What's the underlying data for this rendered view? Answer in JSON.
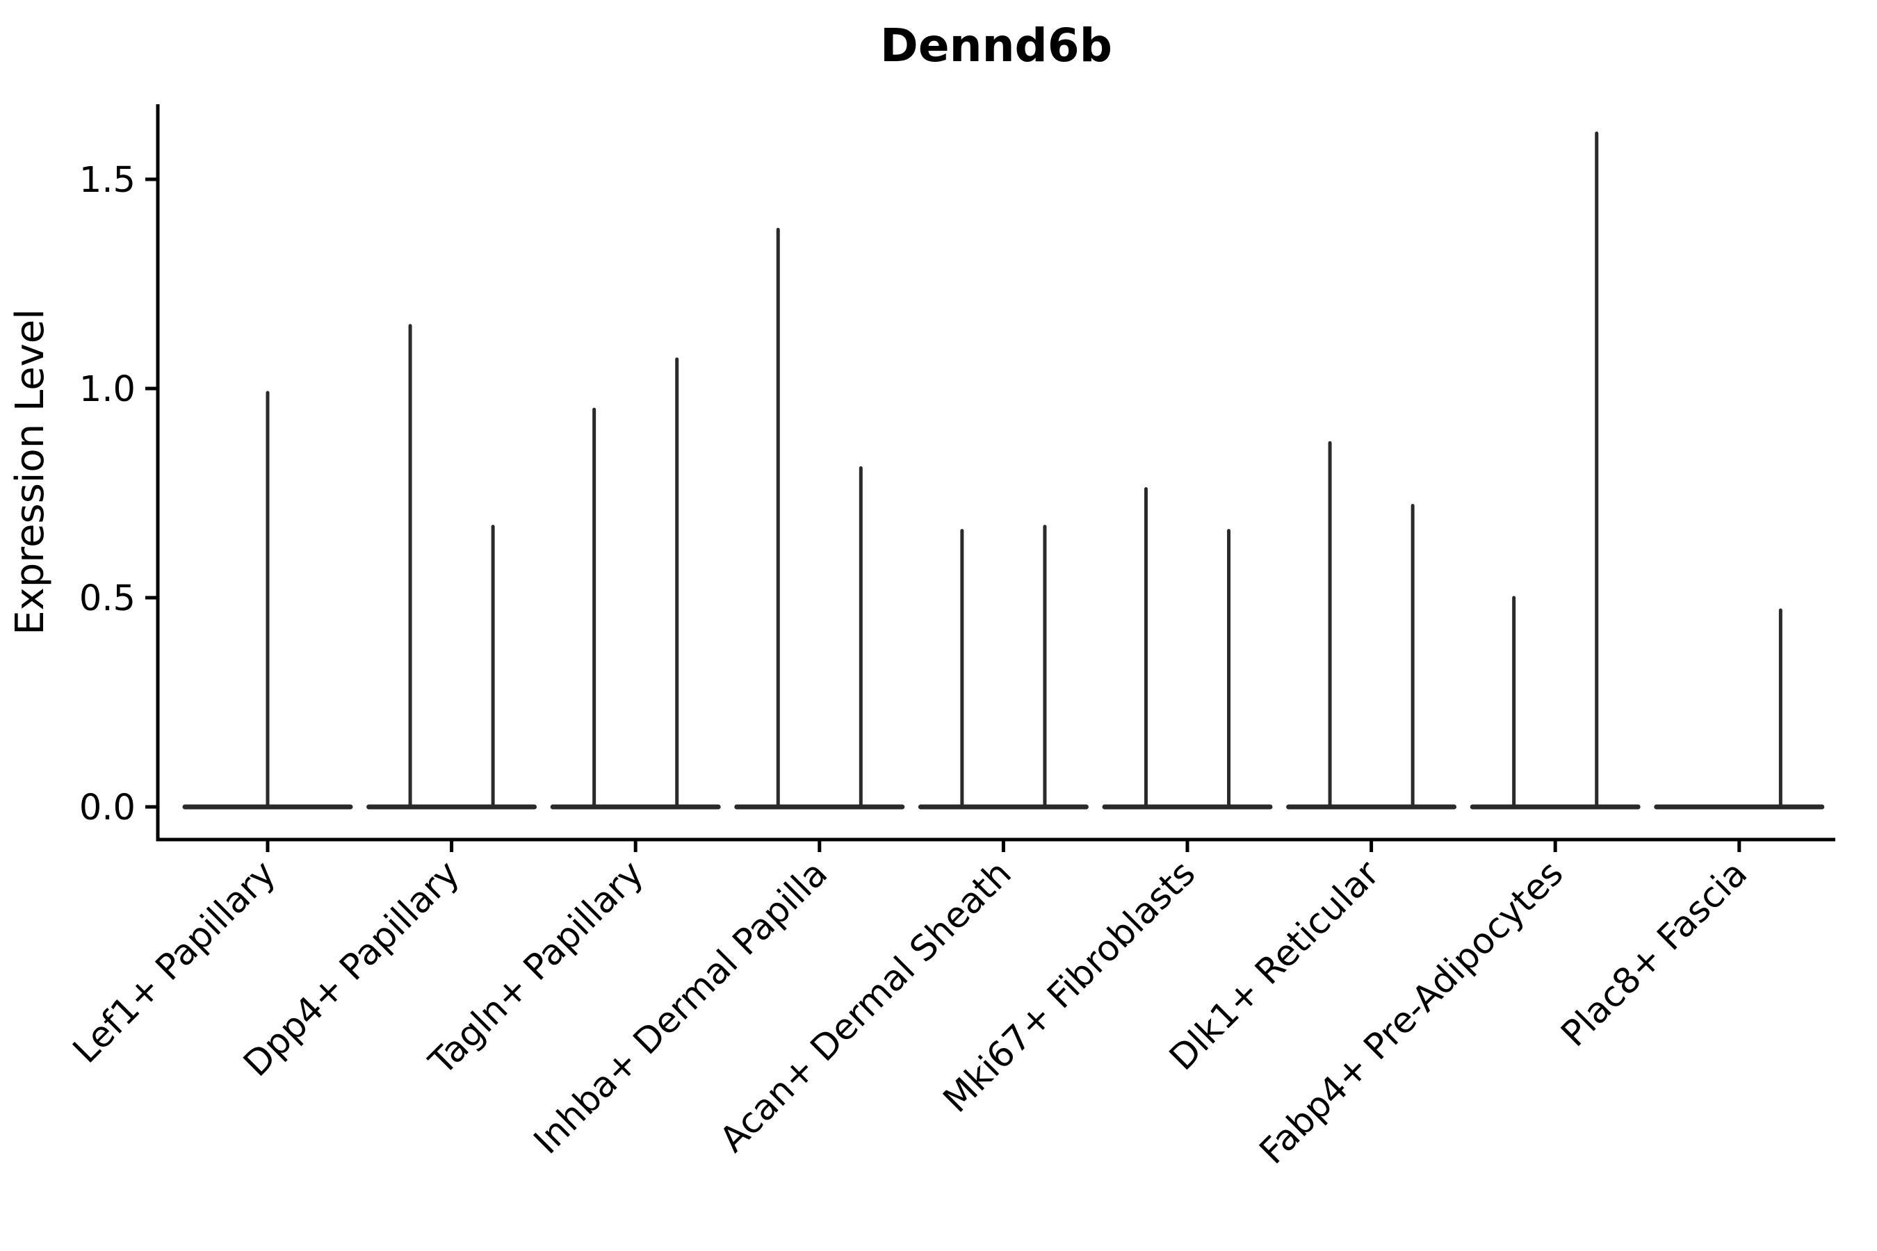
{
  "chart_data": {
    "type": "violin",
    "title": "Dennd6b",
    "ylabel": "Expression Level",
    "xlabel": "",
    "yticks": [
      0.0,
      0.5,
      1.0,
      1.5
    ],
    "ytick_labels": [
      "0.0",
      "0.5",
      "1.0",
      "1.5"
    ],
    "ylim": [
      -0.08,
      1.68
    ],
    "grid": false,
    "legend": "none",
    "ink_color": "#2a2a2a",
    "text_color": "#000000",
    "background_color": "#ffffff",
    "categories": [
      "Lef1+ Papillary",
      "Dpp4+ Papillary",
      "Tagln+ Papillary",
      "Inhba+ Dermal Papilla",
      "Acan+ Dermal Sheath",
      "Mki67+ Fibroblasts",
      "Dlk1+ Reticular",
      "Fabp4+ Pre-Adipocytes",
      "Plac8+ Fascia"
    ],
    "violins": [
      {
        "category": "Lef1+ Papillary",
        "spikes": [
          {
            "x_offset": 0.0,
            "max": 0.99
          }
        ]
      },
      {
        "category": "Dpp4+ Papillary",
        "spikes": [
          {
            "x_offset": -0.225,
            "max": 1.15
          },
          {
            "x_offset": 0.225,
            "max": 0.67
          }
        ]
      },
      {
        "category": "Tagln+ Papillary",
        "spikes": [
          {
            "x_offset": -0.225,
            "max": 0.95
          },
          {
            "x_offset": 0.225,
            "max": 1.07
          }
        ]
      },
      {
        "category": "Inhba+ Dermal Papilla",
        "spikes": [
          {
            "x_offset": -0.225,
            "max": 1.38
          },
          {
            "x_offset": 0.225,
            "max": 0.81
          }
        ]
      },
      {
        "category": "Acan+ Dermal Sheath",
        "spikes": [
          {
            "x_offset": -0.225,
            "max": 0.66
          },
          {
            "x_offset": 0.225,
            "max": 0.67
          }
        ]
      },
      {
        "category": "Mki67+ Fibroblasts",
        "spikes": [
          {
            "x_offset": -0.225,
            "max": 0.76
          },
          {
            "x_offset": 0.225,
            "max": 0.66
          }
        ]
      },
      {
        "category": "Dlk1+ Reticular",
        "spikes": [
          {
            "x_offset": -0.225,
            "max": 0.87
          },
          {
            "x_offset": 0.225,
            "max": 0.72
          }
        ]
      },
      {
        "category": "Fabp4+ Pre-Adipocytes",
        "spikes": [
          {
            "x_offset": -0.225,
            "max": 0.5
          },
          {
            "x_offset": 0.225,
            "max": 1.61
          }
        ]
      },
      {
        "category": "Plac8+ Fascia",
        "spikes": [
          {
            "x_offset": -0.225,
            "max": 0.0
          },
          {
            "x_offset": 0.225,
            "max": 0.47
          }
        ]
      }
    ],
    "baseline_value": 0.0,
    "violin_halfwidth_units": 0.45
  }
}
